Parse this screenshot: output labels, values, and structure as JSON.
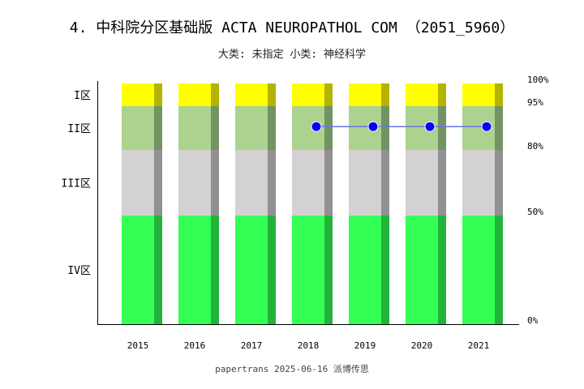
{
  "chart_data": {
    "type": "bar",
    "title": "4. 中科院分区基础版 ACTA NEUROPATHOL COM （2051_5960）",
    "subtitle": "大类: 未指定 小类: 神经科学",
    "categories": [
      "2015",
      "2016",
      "2017",
      "2018",
      "2019",
      "2020",
      "2021"
    ],
    "zones": [
      {
        "name": "IV区",
        "from": 0,
        "to": 50,
        "color": "#33ff55",
        "shade": "#22b33b"
      },
      {
        "name": "III区",
        "from": 50,
        "to": 80,
        "color": "#d3d1d2",
        "shade": "#929091"
      },
      {
        "name": "II区",
        "from": 80,
        "to": 95,
        "color": "#acd28f",
        "shade": "#739363"
      },
      {
        "name": "I区",
        "from": 95,
        "to": 100,
        "color": "#ffff00",
        "shade": "#b3b300"
      }
    ],
    "right_ticks": [
      "0%",
      "50%",
      "80%",
      "95%",
      "100%"
    ],
    "series": [
      {
        "x": [
          "2018",
          "2019",
          "2020",
          "2021"
        ],
        "values": [
          88,
          88,
          88,
          88
        ],
        "color": "#0000ff",
        "line_color": "#6677dd"
      }
    ],
    "ylim": [
      0,
      100
    ],
    "grid": false
  },
  "footer": "papertrans 2025-06-16 派博传思"
}
